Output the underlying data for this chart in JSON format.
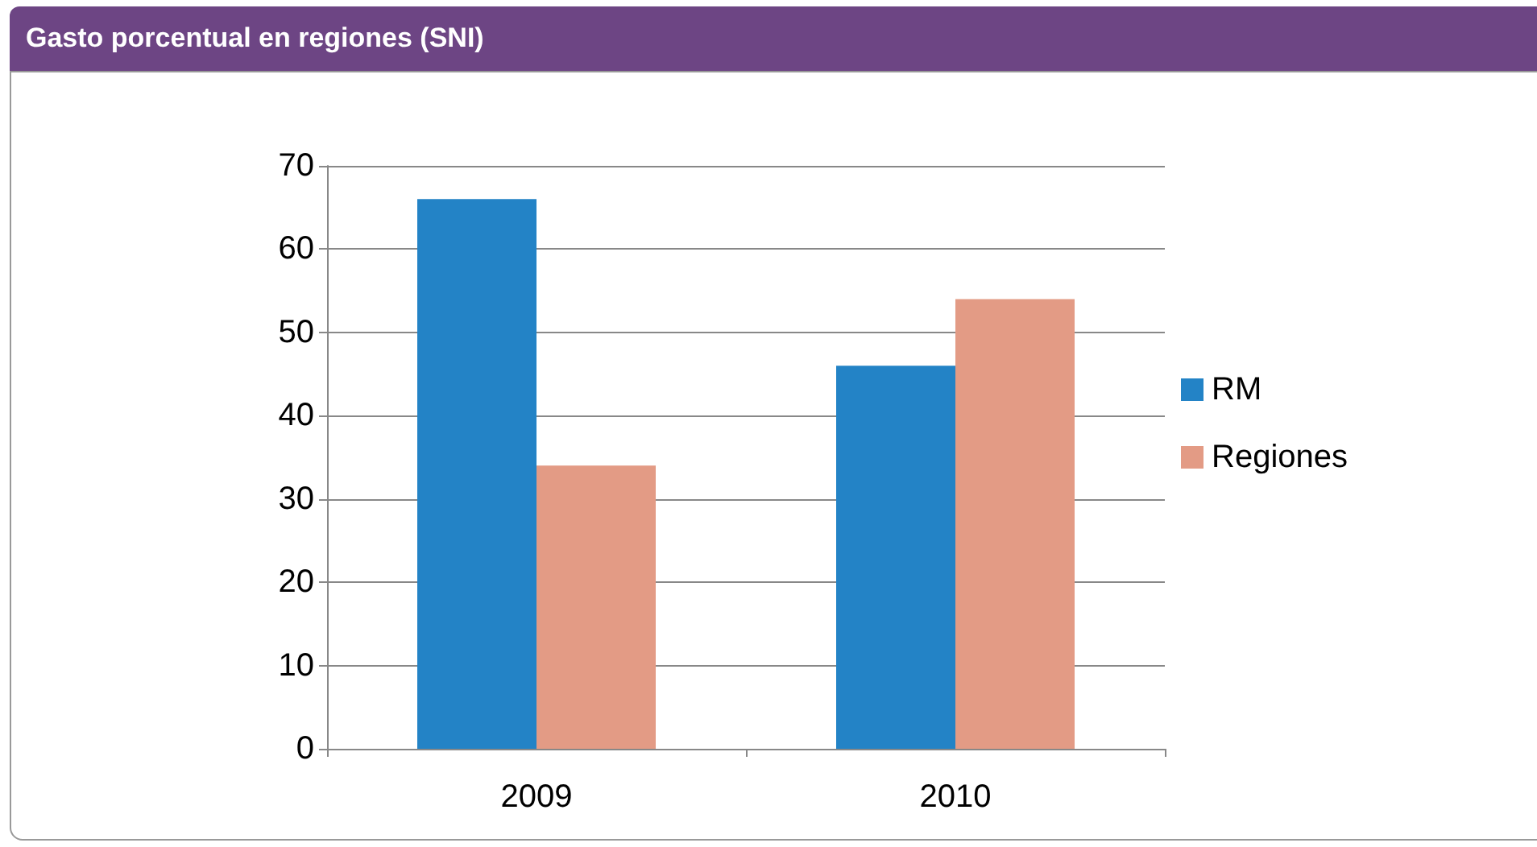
{
  "chart_data": {
    "type": "bar",
    "title": "Gasto porcentual en regiones (SNI)",
    "categories": [
      "2009",
      "2010"
    ],
    "series": [
      {
        "name": "RM",
        "color": "#2383c6",
        "values": [
          66,
          46
        ]
      },
      {
        "name": "Regiones",
        "color": "#e39b85",
        "values": [
          34,
          54
        ]
      }
    ],
    "ylim": [
      0,
      70
    ],
    "yticks": [
      0,
      10,
      20,
      30,
      40,
      50,
      60,
      70
    ],
    "grid": "y",
    "legend": "right"
  }
}
